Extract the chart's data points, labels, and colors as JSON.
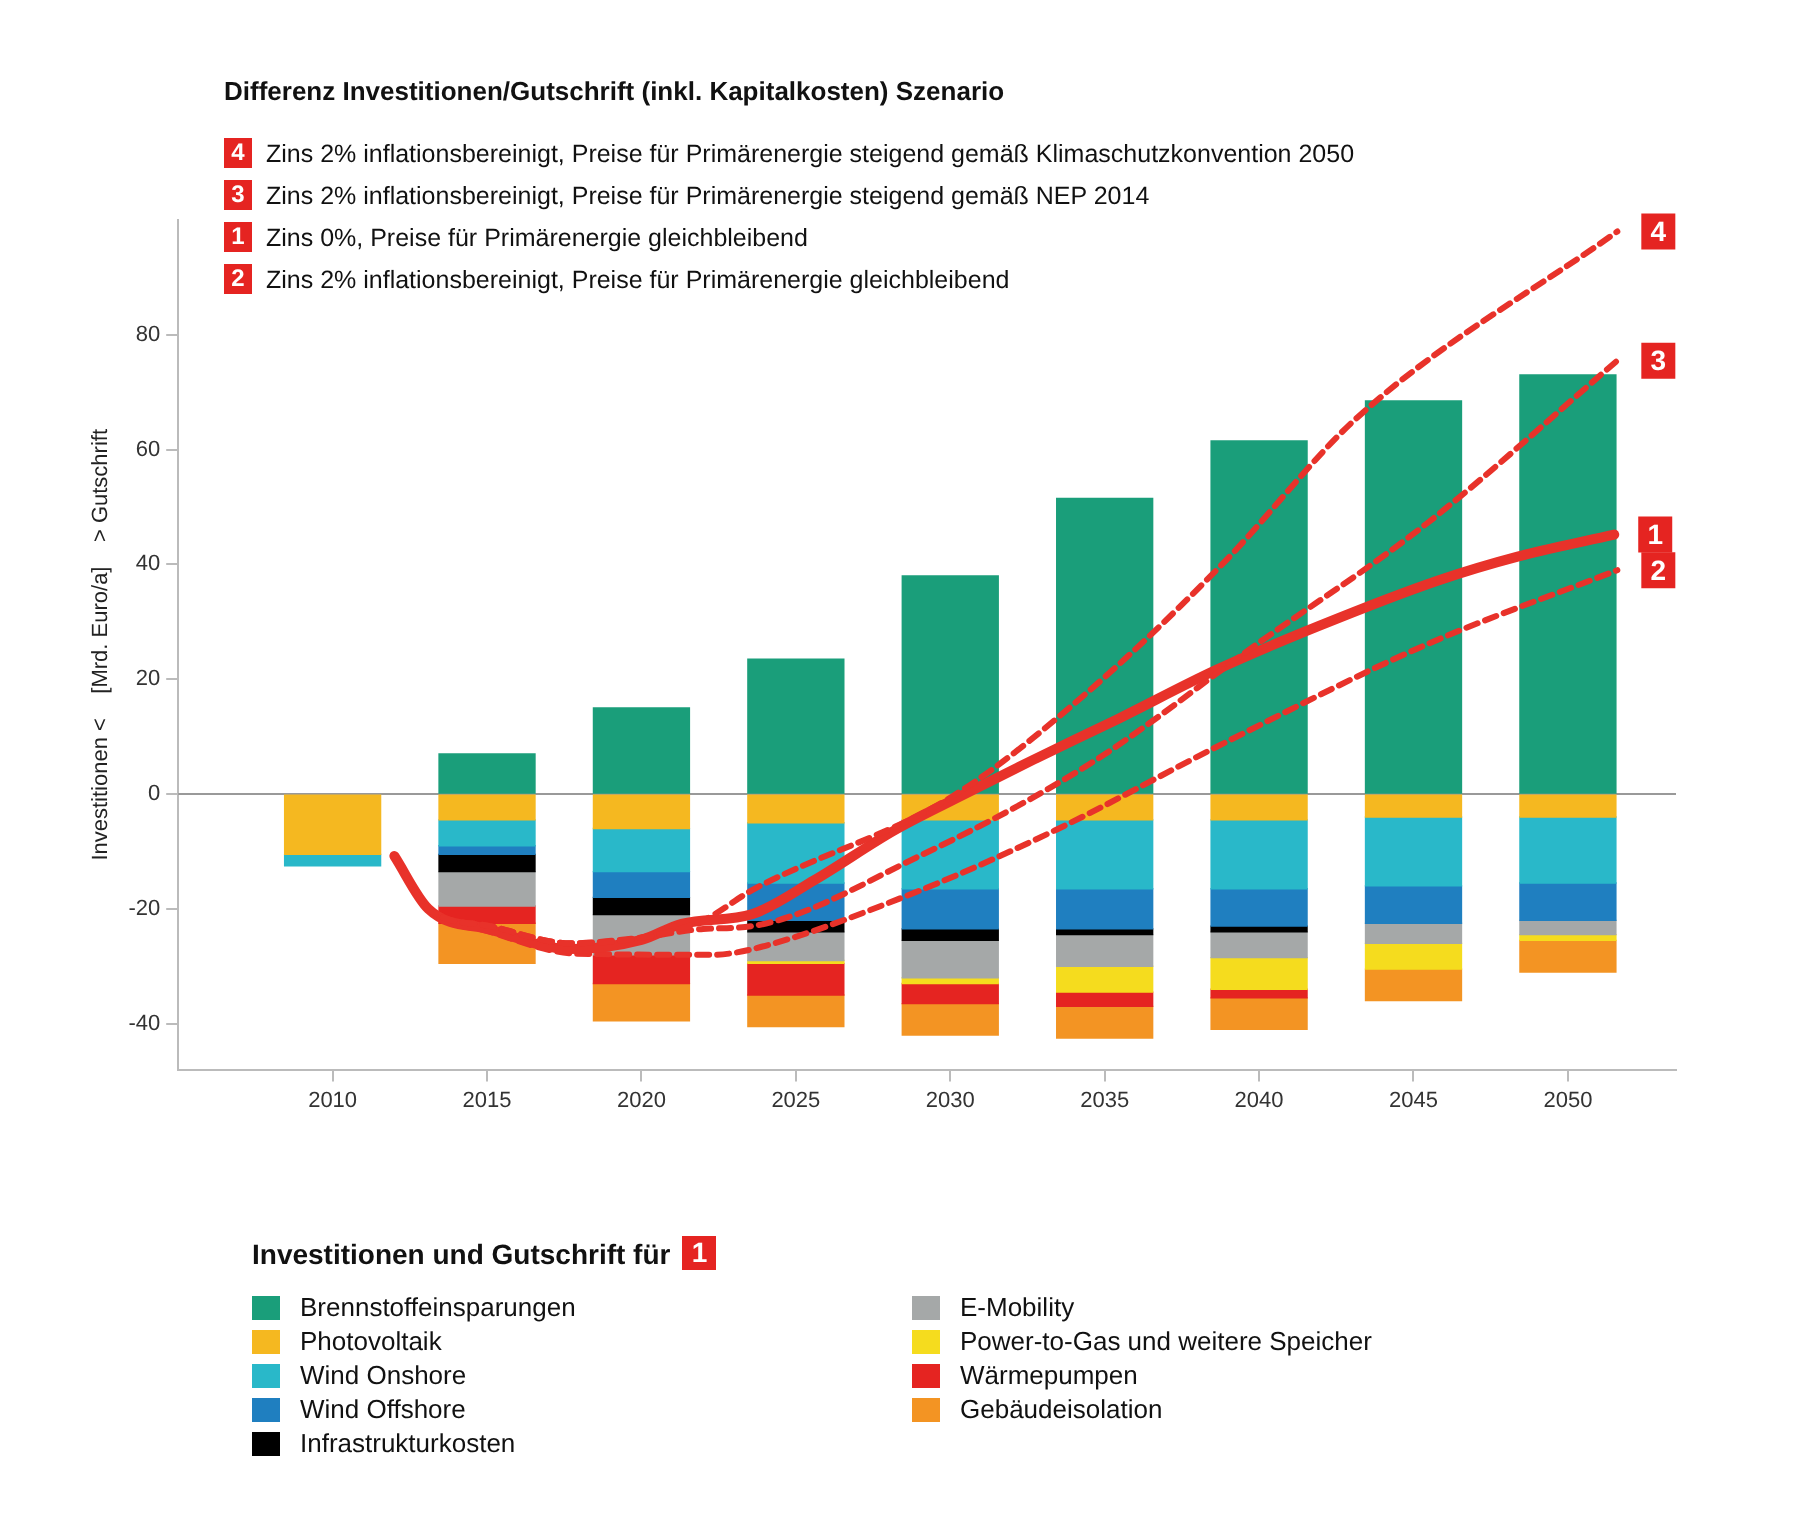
{
  "chart_data": {
    "type": "bar",
    "stacked": true,
    "title": "Differenz Investitionen/Gutschrift (inkl. Kapitalkosten) Szenario",
    "ylabel": "Investitionen <    [Mrd. Euro/a]    > Gutschrift",
    "legend_title": "Investitionen und Gutschrift für",
    "annotations": [
      "Zins 2% inflationsbereinigt, Preise für Primärenergie steigend gemäß Klimaschutzkonvention 2050",
      "Zins 2% inflationsbereinigt, Preise für Primärenergie steigend gemäß NEP 2014",
      "Zins 0%, Preise für Primärenergie gleichbleibend",
      "Zins 2% inflationsbereinigt, Preise für Primärenergie gleichbleibend"
    ],
    "x": [
      2010,
      2015,
      2020,
      2025,
      2030,
      2035,
      2040,
      2045,
      2050
    ],
    "xlim": [
      2005,
      2053.5
    ],
    "xticks": [
      2010,
      2015,
      2020,
      2025,
      2030,
      2035,
      2040,
      2045,
      2050
    ],
    "ylim": [
      -48,
      100
    ],
    "yticks": [
      -40,
      -20,
      0,
      20,
      40,
      60,
      80
    ],
    "grid": false,
    "legend": "bottom",
    "ref_lines": [
      {
        "axis": "y",
        "value": 0,
        "color": "#999999"
      }
    ],
    "series": [
      {
        "name": "4",
        "type": "line",
        "color": "#e8322a",
        "line_style": "dashed",
        "x": [
          2012,
          2013.1,
          2015.1,
          2017.7,
          2020,
          2022,
          2023.6,
          2030.1,
          2034.5,
          2038.8,
          2043.2,
          2051.6
        ],
        "values": [
          -10.8,
          -20,
          -23,
          -26,
          -25,
          -22,
          -16.7,
          -0.3,
          18,
          40,
          65.7,
          98
        ]
      },
      {
        "name": "3",
        "type": "line",
        "color": "#e8322a",
        "line_style": "dashed",
        "x": [
          2012,
          2013.1,
          2015.1,
          2017.7,
          2020,
          2022,
          2023.6,
          2029,
          2034.5,
          2039.9,
          2045.4,
          2051.6
        ],
        "values": [
          -10.8,
          -20,
          -23,
          -26,
          -25,
          -23.5,
          -23,
          -10.8,
          5.2,
          26,
          47,
          75.5
        ]
      },
      {
        "name": "1",
        "type": "line",
        "color": "#e8322a",
        "line_style": "solid",
        "x": [
          2012,
          2013.1,
          2015.1,
          2017.7,
          2020,
          2021.3,
          2023.6,
          2025.6,
          2028.2,
          2030.1,
          2032.7,
          2035.4,
          2038.6,
          2041.9,
          2045.8,
          2048.4,
          2051.5
        ],
        "values": [
          -10.8,
          -20,
          -23.6,
          -27,
          -25.4,
          -22.6,
          -20.9,
          -15,
          -6.3,
          -1,
          6,
          13,
          21.6,
          29.2,
          37.2,
          41.4,
          45.2
        ]
      },
      {
        "name": "2",
        "type": "line",
        "color": "#e8322a",
        "line_style": "dashed",
        "x": [
          2012,
          2013.1,
          2015.1,
          2017.9,
          2022.3,
          2023.6,
          2028.6,
          2033.4,
          2038.8,
          2045.4,
          2051.6
        ],
        "values": [
          -10.8,
          -20,
          -24,
          -27.8,
          -28,
          -27,
          -17.7,
          -6.3,
          8.7,
          26,
          39
        ]
      },
      {
        "name": "Brennstoffeinsparungen",
        "color": "#1a9e7a",
        "values": [
          null,
          7,
          15,
          23.5,
          38,
          51.5,
          61.5,
          68.5,
          73
        ]
      },
      {
        "name": "Photovoltaik",
        "color": "#f5b820",
        "values": [
          -10.5,
          -4.5,
          -6,
          -5,
          -4.5,
          -4.5,
          -4.5,
          -4,
          -4
        ]
      },
      {
        "name": "Wind Onshore",
        "color": "#29b8c9",
        "values": [
          -2,
          -4.5,
          -7.5,
          -10.5,
          -12,
          -12,
          -12,
          -12,
          -11.5
        ]
      },
      {
        "name": "Wind Offshore",
        "color": "#1f7fc0",
        "values": [
          null,
          -1.5,
          -4.5,
          -6.5,
          -7,
          -7,
          -6.5,
          -6.5,
          -6.5
        ]
      },
      {
        "name": "Infrastrukturkosten",
        "color": "#000000",
        "values": [
          null,
          -3,
          -3,
          -2,
          -2,
          -1,
          -1,
          null,
          null
        ]
      },
      {
        "name": "E-Mobility",
        "color": "#a5a8a8",
        "values": [
          null,
          -6,
          -7,
          -5,
          -6.5,
          -5.5,
          -4.5,
          -3.5,
          -2.5
        ]
      },
      {
        "name": "Power-to-Gas und weitere Speicher",
        "color": "#f5dc1e",
        "values": [
          null,
          null,
          null,
          -0.5,
          -1,
          -4.5,
          -5.5,
          -4.5,
          -1
        ]
      },
      {
        "name": "Wärmepumpen",
        "color": "#e52421",
        "values": [
          null,
          -3,
          -5,
          -5.5,
          -3.5,
          -2.5,
          -1.5,
          null,
          null
        ]
      },
      {
        "name": "Gebäudeisolation",
        "color": "#f39423",
        "values": [
          null,
          -7,
          -6.5,
          -5.5,
          -5.5,
          -5.5,
          -5.5,
          -5.5,
          -5.5
        ]
      }
    ]
  }
}
